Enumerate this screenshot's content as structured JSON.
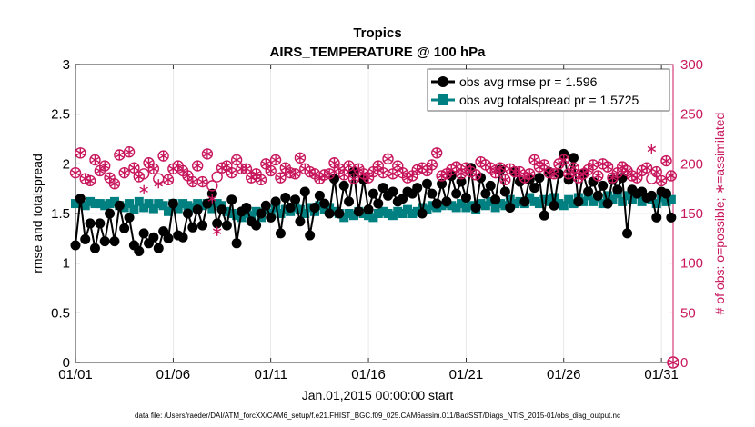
{
  "chart_data": {
    "type": "line",
    "title": "Tropics",
    "subtitle": "AIRS_TEMPERATURE @ 100 hPa",
    "xlabel": "Jan.01,2015 00:00:00 start",
    "ylabel": "rmse and totalspread",
    "y2label": "# of obs: o=possible; ∗=assimilated",
    "xlim": [
      1,
      31.6
    ],
    "ylim": [
      0,
      3
    ],
    "y2lim": [
      0,
      300
    ],
    "x_ticks": [
      1,
      6,
      11,
      16,
      21,
      26,
      31
    ],
    "x_tick_labels": [
      "01/01",
      "01/06",
      "01/11",
      "01/16",
      "01/21",
      "01/26",
      "01/31"
    ],
    "y_ticks": [
      0,
      0.5,
      1,
      1.5,
      2,
      2.5,
      3
    ],
    "y_tick_labels": [
      "0",
      "0.5",
      "1",
      "1.5",
      "2",
      "2.5",
      "3"
    ],
    "y2_ticks": [
      0,
      50,
      100,
      150,
      200,
      250,
      300
    ],
    "y2_tick_labels": [
      "0",
      "50",
      "100",
      "150",
      "200",
      "250",
      "300"
    ],
    "grid": true,
    "legend_position": "top-right",
    "footnote": "data file: /Users/raeder/DAI/ATM_forcXX/CAM6_setup/f.e21.FHIST_BGC.f09_025.CAM6assim.011/BadSST/Diags_NTrS_2015-01/obs_diag_output.nc",
    "colors": {
      "rmse": "#000000",
      "spread": "#008080",
      "obs": "#c8175d"
    },
    "series": [
      {
        "name": "obs avg rmse pr = 1.596",
        "axis": "left",
        "x": [
          1,
          1.25,
          1.5,
          1.75,
          2,
          2.25,
          2.5,
          2.75,
          3,
          3.25,
          3.5,
          3.75,
          4,
          4.25,
          4.5,
          4.75,
          5,
          5.25,
          5.5,
          5.75,
          6,
          6.25,
          6.5,
          6.75,
          7,
          7.25,
          7.5,
          7.75,
          8,
          8.25,
          8.5,
          8.75,
          9,
          9.25,
          9.5,
          9.75,
          10,
          10.25,
          10.5,
          10.75,
          11,
          11.25,
          11.5,
          11.75,
          12,
          12.25,
          12.5,
          12.75,
          13,
          13.25,
          13.5,
          13.75,
          14,
          14.25,
          14.5,
          14.75,
          15,
          15.25,
          15.5,
          15.75,
          16,
          16.25,
          16.5,
          16.75,
          17,
          17.25,
          17.5,
          17.75,
          18,
          18.25,
          18.5,
          18.75,
          19,
          19.25,
          19.5,
          19.75,
          20,
          20.25,
          20.5,
          20.75,
          21,
          21.25,
          21.5,
          21.75,
          22,
          22.25,
          22.5,
          22.75,
          23,
          23.25,
          23.5,
          23.75,
          24,
          24.25,
          24.5,
          24.75,
          25,
          25.25,
          25.5,
          25.75,
          26,
          26.25,
          26.5,
          26.75,
          27,
          27.25,
          27.5,
          27.75,
          28,
          28.25,
          28.5,
          28.75,
          29,
          29.25,
          29.5,
          29.75,
          30,
          30.25,
          30.5,
          30.75,
          31,
          31.25,
          31.5
        ],
        "values": [
          1.18,
          1.65,
          1.24,
          1.4,
          1.15,
          1.4,
          1.22,
          1.5,
          1.22,
          1.58,
          1.35,
          1.46,
          1.18,
          1.12,
          1.3,
          1.2,
          1.26,
          1.15,
          1.32,
          1.25,
          1.6,
          1.28,
          1.26,
          1.5,
          1.36,
          1.54,
          1.38,
          1.6,
          1.7,
          1.4,
          1.54,
          1.38,
          1.64,
          1.2,
          1.52,
          1.56,
          1.42,
          1.38,
          1.5,
          1.58,
          1.46,
          1.62,
          1.3,
          1.66,
          1.56,
          1.64,
          1.42,
          1.72,
          1.28,
          1.56,
          1.68,
          1.6,
          1.5,
          1.85,
          1.5,
          1.78,
          1.62,
          1.92,
          1.52,
          1.84,
          1.54,
          1.7,
          1.6,
          1.76,
          1.68,
          1.72,
          1.62,
          1.65,
          1.72,
          1.7,
          1.76,
          1.5,
          1.8,
          1.7,
          1.6,
          1.8,
          1.62,
          1.88,
          1.7,
          1.82,
          1.66,
          1.96,
          1.56,
          1.86,
          1.7,
          1.78,
          1.64,
          1.94,
          1.72,
          1.56,
          1.92,
          1.82,
          1.62,
          1.84,
          1.76,
          1.86,
          1.48,
          1.92,
          1.58,
          1.9,
          2.1,
          1.84,
          2.06,
          1.62,
          1.9,
          1.72,
          1.82,
          1.68,
          1.78,
          1.6,
          1.84,
          1.74,
          1.86,
          1.3,
          1.74,
          1.7,
          1.72,
          1.66,
          1.68,
          1.46,
          1.72,
          1.7,
          1.46
        ]
      },
      {
        "name": "obs avg totalspread pr = 1.5725",
        "axis": "left",
        "x": [
          1,
          1.25,
          1.5,
          1.75,
          2,
          2.25,
          2.5,
          2.75,
          3,
          3.25,
          3.5,
          3.75,
          4,
          4.25,
          4.5,
          4.75,
          5,
          5.25,
          5.5,
          5.75,
          6,
          6.25,
          6.5,
          6.75,
          7,
          7.25,
          7.5,
          7.75,
          8,
          8.25,
          8.5,
          8.75,
          9,
          9.25,
          9.5,
          9.75,
          10,
          10.25,
          10.5,
          10.75,
          11,
          11.25,
          11.5,
          11.75,
          12,
          12.25,
          12.5,
          12.75,
          13,
          13.25,
          13.5,
          13.75,
          14,
          14.25,
          14.5,
          14.75,
          15,
          15.25,
          15.5,
          15.75,
          16,
          16.25,
          16.5,
          16.75,
          17,
          17.25,
          17.5,
          17.75,
          18,
          18.25,
          18.5,
          18.75,
          19,
          19.25,
          19.5,
          19.75,
          20,
          20.25,
          20.5,
          20.75,
          21,
          21.25,
          21.5,
          21.75,
          22,
          22.25,
          22.5,
          22.75,
          23,
          23.25,
          23.5,
          23.75,
          24,
          24.25,
          24.5,
          24.75,
          25,
          25.25,
          25.5,
          25.75,
          26,
          26.25,
          26.5,
          26.75,
          27,
          27.25,
          27.5,
          27.75,
          28,
          28.25,
          28.5,
          28.75,
          29,
          29.25,
          29.5,
          29.75,
          30,
          30.25,
          30.5,
          30.75,
          31,
          31.25,
          31.5
        ],
        "values": [
          1.6,
          1.62,
          1.58,
          1.62,
          1.6,
          1.6,
          1.58,
          1.6,
          1.62,
          1.58,
          1.56,
          1.6,
          1.54,
          1.62,
          1.56,
          1.6,
          1.55,
          1.6,
          1.58,
          1.52,
          1.6,
          1.55,
          1.6,
          1.58,
          1.56,
          1.6,
          1.58,
          1.6,
          1.55,
          1.6,
          1.58,
          1.52,
          1.5,
          1.48,
          1.46,
          1.5,
          1.48,
          1.52,
          1.46,
          1.54,
          1.5,
          1.56,
          1.5,
          1.54,
          1.52,
          1.56,
          1.54,
          1.5,
          1.56,
          1.52,
          1.58,
          1.54,
          1.56,
          1.52,
          1.5,
          1.46,
          1.5,
          1.48,
          1.52,
          1.5,
          1.48,
          1.46,
          1.5,
          1.52,
          1.5,
          1.48,
          1.52,
          1.5,
          1.54,
          1.5,
          1.52,
          1.56,
          1.54,
          1.58,
          1.56,
          1.58,
          1.6,
          1.58,
          1.56,
          1.6,
          1.56,
          1.58,
          1.54,
          1.6,
          1.58,
          1.62,
          1.56,
          1.6,
          1.58,
          1.64,
          1.6,
          1.62,
          1.6,
          1.66,
          1.62,
          1.6,
          1.64,
          1.62,
          1.66,
          1.6,
          1.58,
          1.64,
          1.6,
          1.66,
          1.62,
          1.68,
          1.62,
          1.66,
          1.6,
          1.68,
          1.64,
          1.7,
          1.62,
          1.68,
          1.64,
          1.7,
          1.62,
          1.66,
          1.64,
          1.6,
          1.66,
          1.62,
          1.64
        ]
      },
      {
        "name": "obs possible",
        "axis": "right",
        "marker": "o",
        "x": [
          1,
          1.25,
          1.5,
          1.75,
          2,
          2.25,
          2.5,
          2.75,
          3,
          3.25,
          3.5,
          3.75,
          4,
          4.25,
          4.5,
          4.75,
          5,
          5.25,
          5.5,
          5.75,
          6,
          6.25,
          6.5,
          6.75,
          7,
          7.25,
          7.5,
          7.75,
          8,
          8.25,
          8.5,
          8.75,
          9,
          9.25,
          9.5,
          9.75,
          10,
          10.25,
          10.5,
          10.75,
          11,
          11.25,
          11.5,
          11.75,
          12,
          12.25,
          12.5,
          12.75,
          13,
          13.25,
          13.5,
          13.75,
          14,
          14.25,
          14.5,
          14.75,
          15,
          15.25,
          15.5,
          15.75,
          16,
          16.25,
          16.5,
          16.75,
          17,
          17.25,
          17.5,
          17.75,
          18,
          18.25,
          18.5,
          18.75,
          19,
          19.25,
          19.5,
          19.75,
          20,
          20.25,
          20.5,
          20.75,
          21,
          21.25,
          21.5,
          21.75,
          22,
          22.25,
          22.5,
          22.75,
          23,
          23.25,
          23.5,
          23.75,
          24,
          24.25,
          24.5,
          24.75,
          25,
          25.25,
          25.5,
          25.75,
          26,
          26.25,
          26.5,
          26.75,
          27,
          27.25,
          27.5,
          27.75,
          28,
          28.25,
          28.5,
          28.75,
          29,
          29.25,
          29.5,
          29.75,
          30,
          30.25,
          30.5,
          30.75,
          31,
          31.25,
          31.5
        ],
        "values": [
          191,
          211,
          185,
          183,
          204,
          193,
          198,
          186,
          180,
          209,
          191,
          212,
          196,
          187,
          190,
          201,
          195,
          185,
          208,
          184,
          195,
          198,
          193,
          188,
          182,
          198,
          182,
          210,
          178,
          187,
          196,
          198,
          191,
          204,
          195,
          195,
          186,
          190,
          184,
          200,
          193,
          204,
          186,
          196,
          191,
          190,
          206,
          195,
          192,
          190,
          185,
          189,
          190,
          201,
          195,
          189,
          198,
          185,
          195,
          190,
          186,
          192,
          198,
          191,
          205,
          190,
          198,
          191,
          186,
          188,
          194,
          196,
          193,
          199,
          211,
          188,
          190,
          194,
          197,
          190,
          196,
          192,
          189,
          202,
          199,
          196,
          191,
          196,
          184,
          195,
          192,
          192,
          186,
          190,
          204,
          197,
          199,
          191,
          190,
          200,
          204,
          190,
          196,
          186,
          190,
          194,
          199,
          188,
          200,
          197,
          186,
          191,
          197,
          193,
          188,
          186,
          193,
          196,
          185,
          192,
          183,
          203,
          188
        ]
      },
      {
        "name": "obs assimilated",
        "axis": "right",
        "marker": "*",
        "x": [
          1,
          1.25,
          1.5,
          1.75,
          2,
          2.25,
          2.5,
          2.75,
          3,
          3.25,
          3.5,
          3.75,
          4,
          4.25,
          4.5,
          4.75,
          5,
          5.25,
          5.5,
          5.75,
          6,
          6.25,
          6.5,
          6.75,
          7,
          7.25,
          7.5,
          7.75,
          8,
          8.25,
          8.5,
          8.75,
          9,
          9.25,
          9.5,
          9.75,
          10,
          10.25,
          10.5,
          10.75,
          11,
          11.25,
          11.5,
          11.75,
          12,
          12.25,
          12.5,
          12.75,
          13,
          13.25,
          13.5,
          13.75,
          14,
          14.25,
          14.5,
          14.75,
          15,
          15.25,
          15.5,
          15.75,
          16,
          16.25,
          16.5,
          16.75,
          17,
          17.25,
          17.5,
          17.75,
          18,
          18.25,
          18.5,
          18.75,
          19,
          19.25,
          19.5,
          19.75,
          20,
          20.25,
          20.5,
          20.75,
          21,
          21.25,
          21.5,
          21.75,
          22,
          22.25,
          22.5,
          22.75,
          23,
          23.25,
          23.5,
          23.75,
          24,
          24.25,
          24.5,
          24.75,
          25,
          25.25,
          25.5,
          25.75,
          26,
          26.25,
          26.5,
          26.75,
          27,
          27.25,
          27.5,
          27.75,
          28,
          28.25,
          28.5,
          28.75,
          29,
          29.25,
          29.5,
          29.75,
          30,
          30.25,
          30.5,
          30.75,
          31,
          31.25,
          31.5
        ],
        "values": [
          191,
          211,
          185,
          183,
          204,
          193,
          198,
          186,
          180,
          209,
          191,
          212,
          196,
          187,
          174,
          201,
          195,
          180,
          208,
          184,
          195,
          198,
          193,
          188,
          182,
          198,
          182,
          210,
          165,
          132,
          196,
          198,
          191,
          204,
          195,
          195,
          186,
          190,
          184,
          200,
          193,
          204,
          186,
          196,
          191,
          190,
          206,
          195,
          192,
          190,
          185,
          189,
          190,
          201,
          195,
          189,
          198,
          185,
          195,
          190,
          186,
          192,
          198,
          191,
          205,
          190,
          198,
          191,
          186,
          188,
          194,
          196,
          193,
          199,
          211,
          188,
          190,
          194,
          197,
          190,
          196,
          192,
          189,
          202,
          199,
          196,
          191,
          196,
          184,
          195,
          192,
          192,
          186,
          190,
          204,
          197,
          199,
          191,
          190,
          200,
          204,
          190,
          196,
          186,
          190,
          194,
          199,
          188,
          200,
          197,
          186,
          191,
          197,
          193,
          188,
          186,
          193,
          196,
          215,
          192,
          183,
          203,
          188
        ]
      }
    ],
    "end_markers": {
      "x": 31.6,
      "y2": 0,
      "marker": "o*"
    }
  }
}
